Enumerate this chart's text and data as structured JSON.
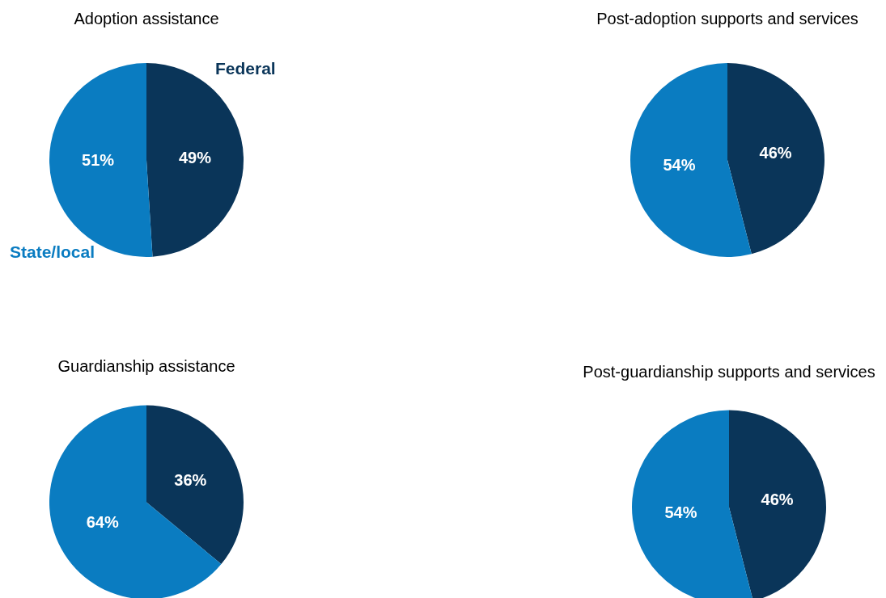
{
  "chart_data": [
    {
      "type": "pie",
      "title": "Adoption assistance",
      "categories": [
        "Federal",
        "State/local"
      ],
      "values": [
        49,
        51
      ],
      "colors": [
        "#0a3559",
        "#0a7cc1"
      ],
      "value_labels": [
        "49%",
        "51%"
      ]
    },
    {
      "type": "pie",
      "title": "Post-adoption supports and services",
      "categories": [
        null,
        null
      ],
      "values": [
        46,
        54
      ],
      "colors": [
        "#0a3559",
        "#0a7cc1"
      ],
      "value_labels": [
        "46%",
        "54%"
      ]
    },
    {
      "type": "pie",
      "title": "Guardianship assistance",
      "categories": [
        null,
        null
      ],
      "values": [
        36,
        64
      ],
      "colors": [
        "#0a3559",
        "#0a7cc1"
      ],
      "value_labels": [
        "36%",
        "64%"
      ]
    },
    {
      "type": "pie",
      "title": "Post-guardianship supports and services",
      "categories": [
        null,
        null
      ],
      "values": [
        46,
        54
      ],
      "colors": [
        "#0a3559",
        "#0a7cc1"
      ],
      "value_labels": [
        "46%",
        "54%"
      ]
    }
  ]
}
